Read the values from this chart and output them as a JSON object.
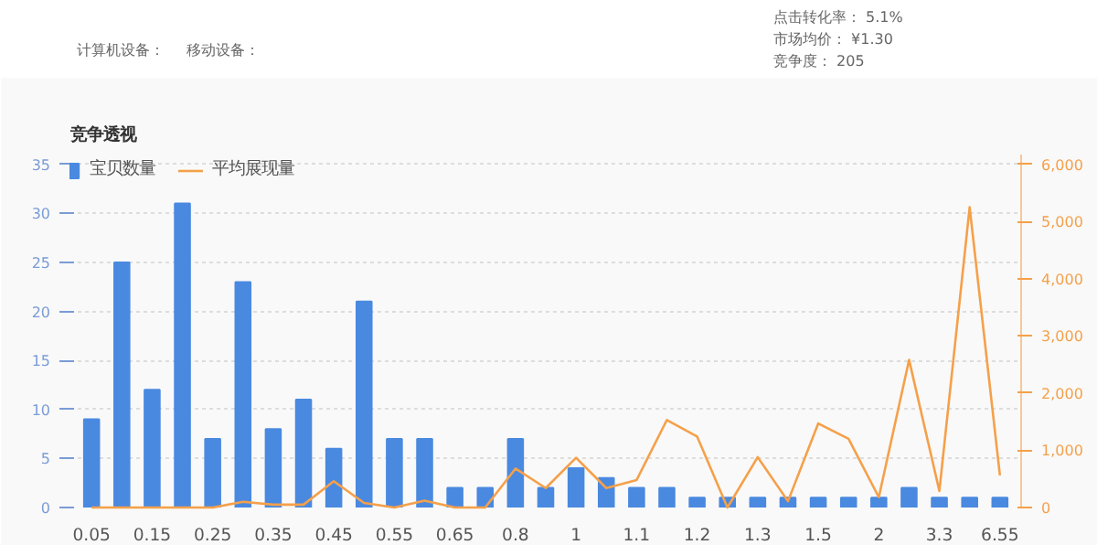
{
  "chart_data": {
    "type": "bar",
    "title": "竞争透视",
    "annotations": [
      "计算机设备：",
      "移动设备：",
      "点击转化率： 5.1%",
      "市场均价： ¥1.30",
      "竞争度： 205"
    ],
    "categories": [
      "0.05",
      null,
      "0.15",
      null,
      "0.25",
      null,
      "0.35",
      null,
      "0.45",
      null,
      "0.55",
      null,
      "0.65",
      null,
      "0.8",
      null,
      "1",
      null,
      "1.1",
      null,
      "1.2",
      null,
      "1.3",
      null,
      "1.5",
      null,
      "2",
      null,
      "3.3",
      null,
      "6.55"
    ],
    "series": [
      {
        "name": "宝贝数量",
        "color": "#4a89e0",
        "values": [
          9,
          25,
          12,
          31,
          7,
          23,
          8,
          11,
          6,
          21,
          7,
          7,
          2,
          2,
          7,
          2,
          4,
          3,
          2,
          2,
          1,
          1,
          1,
          1,
          1,
          1,
          1,
          2,
          1,
          1,
          1
        ]
      },
      {
        "name": "平均展现量",
        "type": "line",
        "axis": "y2",
        "color": "#f5a04a",
        "values": [
          0,
          0,
          0,
          0,
          0,
          100,
          50,
          50,
          460,
          80,
          0,
          120,
          0,
          0,
          680,
          340,
          870,
          340,
          480,
          1530,
          1240,
          0,
          880,
          110,
          1470,
          1200,
          180,
          2580,
          290,
          5250,
          560
        ]
      }
    ],
    "ylim": [
      0,
      36
    ],
    "yticks": [
      0,
      5,
      10,
      15,
      20,
      25,
      30,
      35
    ],
    "y2lim": [
      0,
      6170
    ],
    "y2ticks": [
      0,
      {
        "value": 1000,
        "label": "1,000"
      },
      {
        "value": 2000,
        "label": "2,000"
      },
      {
        "value": 3000,
        "label": "3,000"
      },
      {
        "value": 4000,
        "label": "4,000"
      },
      {
        "value": 5000,
        "label": "5,000"
      },
      {
        "value": 6000,
        "label": "6,000"
      }
    ],
    "grid": "y",
    "legend": "top left"
  }
}
